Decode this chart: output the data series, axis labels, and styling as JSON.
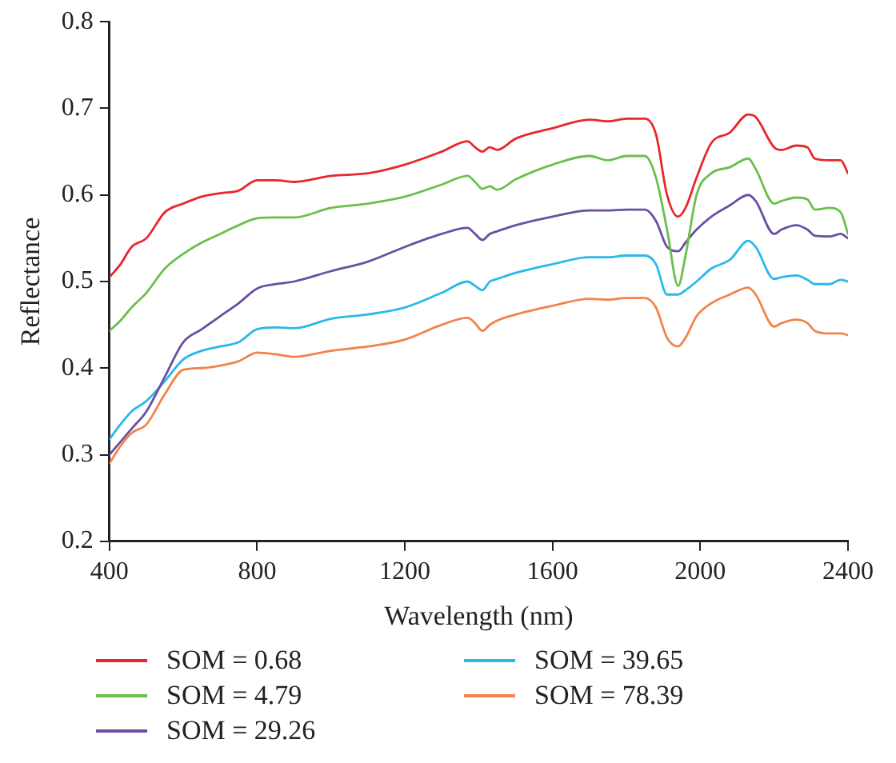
{
  "chart_data": {
    "type": "line",
    "xlabel": "Wavelength (nm)",
    "ylabel": "Reflectance",
    "x": [
      400,
      430,
      460,
      500,
      550,
      600,
      650,
      700,
      750,
      800,
      850,
      900,
      1000,
      1100,
      1200,
      1300,
      1370,
      1390,
      1410,
      1430,
      1450,
      1500,
      1600,
      1700,
      1750,
      1800,
      1850,
      1880,
      1910,
      1940,
      1960,
      1990,
      2030,
      2080,
      2130,
      2150,
      2200,
      2220,
      2260,
      2290,
      2310,
      2350,
      2380,
      2400
    ],
    "xlim": [
      400,
      2400
    ],
    "xticks": [
      400,
      800,
      1200,
      1600,
      2000,
      2400
    ],
    "ylim": [
      0.2,
      0.8
    ],
    "yticks": [
      0.2,
      0.3,
      0.4,
      0.5,
      0.6,
      0.7,
      0.8
    ],
    "grid": false,
    "legend": "bottom",
    "marker": "none",
    "line_style": "solid",
    "series": [
      {
        "name": "SOM = 0.68",
        "color": "#e8262b",
        "values": [
          0.505,
          0.52,
          0.54,
          0.55,
          0.58,
          0.59,
          0.598,
          0.602,
          0.605,
          0.617,
          0.617,
          0.615,
          0.622,
          0.625,
          0.635,
          0.65,
          0.662,
          0.655,
          0.65,
          0.655,
          0.652,
          0.665,
          0.677,
          0.687,
          0.685,
          0.688,
          0.688,
          0.67,
          0.6,
          0.575,
          0.585,
          0.62,
          0.66,
          0.672,
          0.693,
          0.69,
          0.655,
          0.652,
          0.657,
          0.655,
          0.642,
          0.64,
          0.64,
          0.625
        ]
      },
      {
        "name": "SOM = 4.79",
        "color": "#6abf4b",
        "values": [
          0.443,
          0.455,
          0.47,
          0.487,
          0.515,
          0.532,
          0.545,
          0.555,
          0.565,
          0.573,
          0.574,
          0.574,
          0.585,
          0.59,
          0.598,
          0.612,
          0.622,
          0.615,
          0.607,
          0.61,
          0.606,
          0.618,
          0.635,
          0.645,
          0.64,
          0.645,
          0.645,
          0.62,
          0.56,
          0.495,
          0.53,
          0.6,
          0.625,
          0.632,
          0.642,
          0.63,
          0.59,
          0.593,
          0.597,
          0.595,
          0.583,
          0.585,
          0.58,
          0.555
        ]
      },
      {
        "name": "SOM = 29.26",
        "color": "#6a4fa3",
        "values": [
          0.3,
          0.315,
          0.33,
          0.35,
          0.39,
          0.43,
          0.445,
          0.46,
          0.475,
          0.492,
          0.497,
          0.5,
          0.512,
          0.523,
          0.54,
          0.555,
          0.562,
          0.555,
          0.548,
          0.555,
          0.558,
          0.565,
          0.575,
          0.582,
          0.582,
          0.583,
          0.583,
          0.57,
          0.54,
          0.535,
          0.545,
          0.56,
          0.575,
          0.588,
          0.6,
          0.593,
          0.555,
          0.56,
          0.565,
          0.56,
          0.553,
          0.552,
          0.555,
          0.55
        ]
      },
      {
        "name": "SOM = 39.65",
        "color": "#2ab8ea",
        "values": [
          0.318,
          0.335,
          0.35,
          0.362,
          0.385,
          0.41,
          0.42,
          0.425,
          0.43,
          0.445,
          0.447,
          0.446,
          0.457,
          0.462,
          0.47,
          0.487,
          0.5,
          0.495,
          0.49,
          0.5,
          0.503,
          0.51,
          0.52,
          0.528,
          0.528,
          0.53,
          0.53,
          0.52,
          0.485,
          0.485,
          0.49,
          0.5,
          0.515,
          0.525,
          0.547,
          0.54,
          0.503,
          0.505,
          0.507,
          0.502,
          0.497,
          0.497,
          0.502,
          0.5
        ]
      },
      {
        "name": "SOM = 78.39",
        "color": "#f2834a",
        "values": [
          0.29,
          0.31,
          0.325,
          0.335,
          0.37,
          0.398,
          0.4,
          0.403,
          0.408,
          0.418,
          0.416,
          0.413,
          0.42,
          0.425,
          0.433,
          0.45,
          0.458,
          0.452,
          0.443,
          0.45,
          0.455,
          0.462,
          0.472,
          0.48,
          0.479,
          0.481,
          0.481,
          0.47,
          0.435,
          0.425,
          0.435,
          0.46,
          0.475,
          0.485,
          0.493,
          0.485,
          0.448,
          0.452,
          0.456,
          0.452,
          0.443,
          0.44,
          0.44,
          0.438
        ]
      }
    ]
  }
}
